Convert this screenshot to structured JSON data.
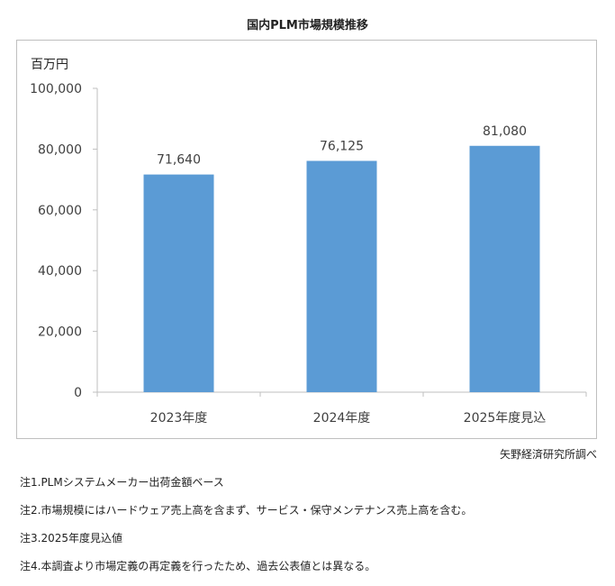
{
  "chart_data": {
    "type": "bar",
    "title": "国内PLM市場規模推移",
    "ylabel": "百万円",
    "xlabel": "",
    "categories": [
      "2023年度",
      "2024年度",
      "2025年度見込"
    ],
    "values": [
      71640,
      76125,
      81080
    ],
    "value_labels": [
      "71,640",
      "76,125",
      "81,080"
    ],
    "ylim": [
      0,
      100000
    ],
    "yticks": [
      0,
      20000,
      40000,
      60000,
      80000,
      100000
    ],
    "ytick_labels": [
      "0",
      "20,000",
      "40,000",
      "60,000",
      "80,000",
      "100,000"
    ],
    "grid": false,
    "bar_color": "#5b9bd5",
    "axis_color": "#bfbfbf",
    "text_color": "#404040"
  },
  "source": "矢野経済研究所調べ",
  "notes": [
    "注1.PLMシステムメーカー出荷金額ベース",
    "注2.市場規模にはハードウェア売上高を含まず、サービス・保守メンテナンス売上高を含む。",
    "注3.2025年度見込値",
    "注4.本調査より市場定義の再定義を行ったため、過去公表値とは異なる。"
  ]
}
